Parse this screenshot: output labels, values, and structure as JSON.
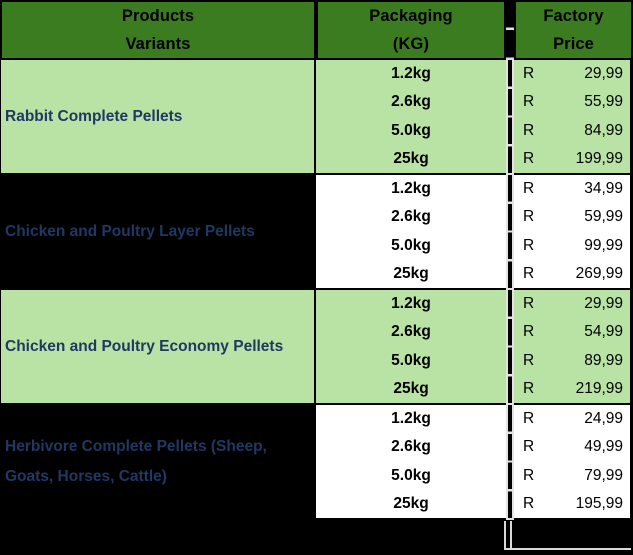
{
  "title": "Factory price list table",
  "currency_symbol": "R",
  "header": {
    "products": [
      "Products",
      "Variants"
    ],
    "packaging": [
      "Packaging",
      "(KG)"
    ],
    "price": [
      "Factory",
      "Price"
    ]
  },
  "groups": [
    {
      "name": "Rabbit Complete Pellets",
      "theme": "green",
      "rows": [
        {
          "packaging": "1.2kg",
          "price": "29,99"
        },
        {
          "packaging": "2.6kg",
          "price": "55,99"
        },
        {
          "packaging": "5.0kg",
          "price": "84,99"
        },
        {
          "packaging": "25kg",
          "price": "199,99"
        }
      ]
    },
    {
      "name": "Chicken and Poultry Layer Pellets",
      "theme": "dark",
      "rows": [
        {
          "packaging": "1.2kg",
          "price": "34,99"
        },
        {
          "packaging": "2.6kg",
          "price": "59,99"
        },
        {
          "packaging": "5.0kg",
          "price": "99,99"
        },
        {
          "packaging": "25kg",
          "price": "269,99"
        }
      ]
    },
    {
      "name": "Chicken and Poultry Economy Pellets",
      "theme": "green",
      "rows": [
        {
          "packaging": "1.2kg",
          "price": "29,99"
        },
        {
          "packaging": "2.6kg",
          "price": "54,99"
        },
        {
          "packaging": "5.0kg",
          "price": "89,99"
        },
        {
          "packaging": "25kg",
          "price": "219,99"
        }
      ]
    },
    {
      "name": "Herbivore Complete Pellets (Sheep, Goats, Horses, Cattle)",
      "theme": "dark",
      "rows": [
        {
          "packaging": "1.2kg",
          "price": "24,99"
        },
        {
          "packaging": "2.6kg",
          "price": "49,99"
        },
        {
          "packaging": "5.0kg",
          "price": "79,99"
        },
        {
          "packaging": "25kg",
          "price": "195,99"
        }
      ]
    }
  ],
  "colors": {
    "header_green": "#3b7c21",
    "light_green": "#b9e3a4",
    "product_name_text": "#1f3864",
    "canvas_black": "#000000",
    "white_cell": "#ffffff",
    "gridline_white": "#e3e3e3"
  }
}
